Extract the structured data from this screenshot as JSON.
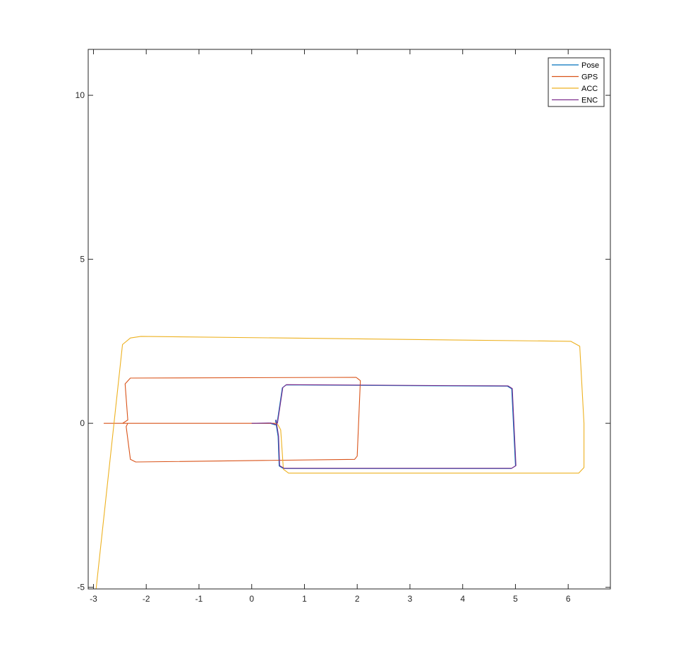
{
  "chart_data": {
    "type": "line",
    "title": "",
    "xlabel": "",
    "ylabel": "",
    "xlim": [
      -3.1,
      6.8
    ],
    "ylim": [
      -5.05,
      11.4
    ],
    "xticks": [
      -3,
      -2,
      -1,
      0,
      1,
      2,
      3,
      4,
      5,
      6
    ],
    "yticks": [
      -5,
      0,
      5,
      10
    ],
    "grid": false,
    "legend_position": "top-right",
    "series": [
      {
        "name": "Pose",
        "color": "#0072BD",
        "x": [
          0.0,
          0.35,
          0.45,
          0.48,
          0.58,
          0.65,
          4.85,
          4.93,
          5.0,
          4.92,
          0.6,
          0.52,
          0.5,
          0.47,
          0.45
        ],
        "y": [
          0.0,
          0.0,
          -0.05,
          0.0,
          1.08,
          1.17,
          1.13,
          1.05,
          -1.3,
          -1.38,
          -1.38,
          -1.3,
          -0.4,
          -0.1,
          0.1
        ]
      },
      {
        "name": "GPS",
        "color": "#D95319",
        "x": [
          -2.8,
          -2.45,
          -2.35,
          -2.4,
          -2.3,
          1.98,
          2.06,
          2.0,
          1.95,
          -2.2,
          -2.3,
          -2.38,
          -2.35,
          -2.5,
          -2.8,
          0.45
        ],
        "y": [
          0.0,
          0.0,
          0.1,
          1.2,
          1.38,
          1.4,
          1.3,
          -1.0,
          -1.1,
          -1.18,
          -1.1,
          -0.1,
          0.0,
          0.0,
          0.0,
          0.0
        ]
      },
      {
        "name": "ACC",
        "color": "#EDB120",
        "x": [
          -2.95,
          -2.45,
          -2.3,
          -2.1,
          6.05,
          6.22,
          6.3,
          6.3,
          6.2,
          0.7,
          0.6,
          0.55,
          0.5,
          0.45
        ],
        "y": [
          -5.05,
          2.4,
          2.6,
          2.65,
          2.5,
          2.35,
          0.0,
          -1.35,
          -1.52,
          -1.52,
          -1.4,
          -0.2,
          -0.05,
          0.0
        ]
      },
      {
        "name": "ENC",
        "color": "#7E2F8E",
        "x": [
          0.0,
          0.36,
          0.46,
          0.49,
          0.59,
          0.66,
          4.86,
          4.94,
          5.01,
          4.93,
          0.61,
          0.53,
          0.51,
          0.48,
          0.46
        ],
        "y": [
          0.0,
          0.01,
          -0.04,
          0.01,
          1.09,
          1.18,
          1.14,
          1.06,
          -1.29,
          -1.37,
          -1.37,
          -1.29,
          -0.39,
          -0.09,
          0.11
        ]
      }
    ]
  }
}
